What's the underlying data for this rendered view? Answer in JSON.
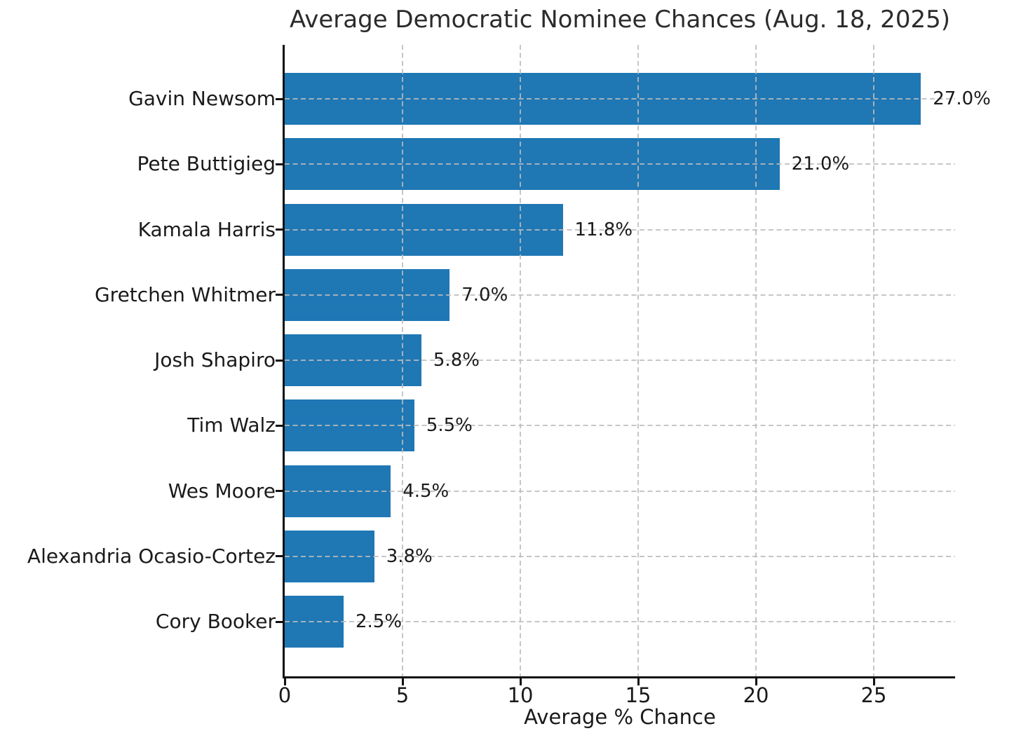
{
  "chart_data": {
    "type": "bar",
    "orientation": "horizontal",
    "title": "Average Democratic Nominee Chances (Aug. 18, 2025)",
    "xlabel": "Average % Chance",
    "ylabel": "",
    "categories": [
      "Gavin Newsom",
      "Pete Buttigieg",
      "Kamala Harris",
      "Gretchen Whitmer",
      "Josh Shapiro",
      "Tim Walz",
      "Wes Moore",
      "Alexandria Ocasio-Cortez",
      "Cory Booker"
    ],
    "values": [
      27.0,
      21.0,
      11.8,
      7.0,
      5.8,
      5.5,
      4.5,
      3.8,
      2.5
    ],
    "value_labels": [
      "27.0%",
      "21.0%",
      "11.8%",
      "7.0%",
      "5.8%",
      "5.5%",
      "4.5%",
      "3.8%",
      "2.5%"
    ],
    "x_tick_values": [
      0,
      5,
      10,
      15,
      20,
      25
    ],
    "x_tick_labels": [
      "0",
      "5",
      "10",
      "15",
      "20",
      "25"
    ],
    "xlim": [
      0,
      28.45
    ],
    "grid": true,
    "grid_style": "dashed",
    "legend": null,
    "colors": {
      "bar": "#1f77b4",
      "grid": "#bcbcbc",
      "axis": "#111111",
      "text": "#1a1a1a",
      "title": "#2b2b2b",
      "background": "#ffffff"
    }
  }
}
